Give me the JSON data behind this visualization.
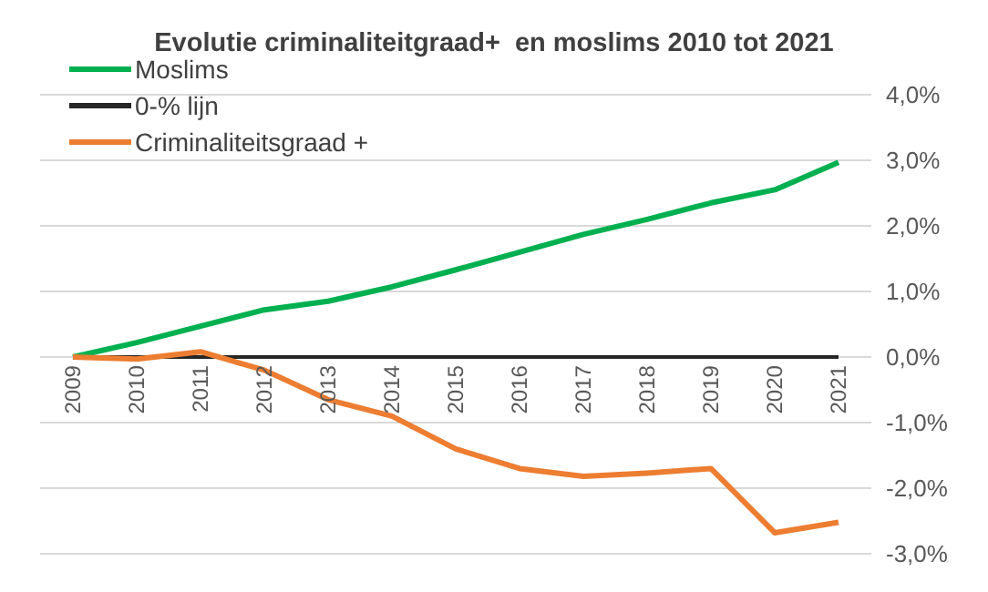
{
  "chart_data": {
    "type": "line",
    "title": "Evolutie criminaliteitgraad+  en moslims 2010 tot 2021",
    "categories": [
      "2009",
      "2010",
      "2011",
      "2012",
      "2013",
      "2014",
      "2015",
      "2016",
      "2017",
      "2018",
      "2019",
      "2020",
      "2021"
    ],
    "series": [
      {
        "name": "Moslims",
        "color": "#00b050",
        "values": [
          0,
          0.22,
          0.47,
          0.72,
          0.85,
          1.07,
          1.33,
          1.6,
          1.87,
          2.1,
          2.35,
          2.55,
          2.97
        ]
      },
      {
        "name": "0-% lijn",
        "color": "#262626",
        "values": [
          0,
          0,
          0,
          0,
          0,
          0,
          0,
          0,
          0,
          0,
          0,
          0,
          0
        ]
      },
      {
        "name": "Criminaliteitsgraad +",
        "color": "#ed7d31",
        "values": [
          0,
          -0.03,
          0.08,
          -0.2,
          -0.65,
          -0.9,
          -1.4,
          -1.7,
          -1.82,
          -1.77,
          -1.7,
          -2.68,
          -2.52
        ]
      }
    ],
    "ylim": [
      -3,
      4
    ],
    "yticks": [
      {
        "value": -3,
        "label": "-3,0%"
      },
      {
        "value": -2,
        "label": "-2,0%"
      },
      {
        "value": -1,
        "label": "-1,0%"
      },
      {
        "value": 0,
        "label": "0,0%"
      },
      {
        "value": 1,
        "label": "1,0%"
      },
      {
        "value": 2,
        "label": "2,0%"
      },
      {
        "value": 3,
        "label": "3,0%"
      },
      {
        "value": 4,
        "label": "4,0%"
      }
    ],
    "grid": "y",
    "legend": "top left",
    "marker": "none",
    "line_style": "solid"
  }
}
